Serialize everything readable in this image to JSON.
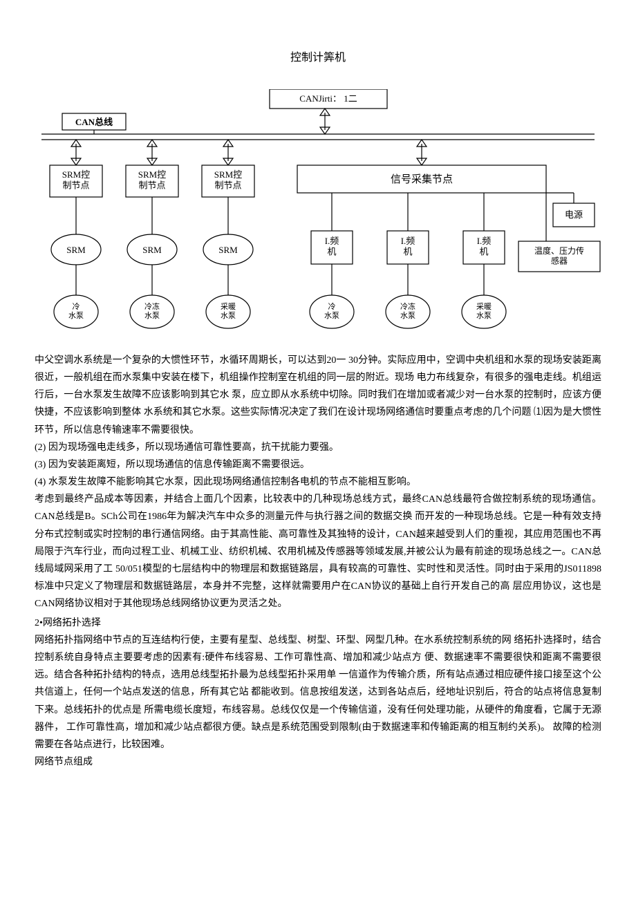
{
  "title": "控制计筭机",
  "diagram": {
    "can_bridge": "CANJirti： 1二",
    "can_bus_label": "CAN总线",
    "srm_ctrl_label": "SRM控\n制节点",
    "signal_node_label": "信号采集节点",
    "srm_label": "SRM",
    "freq_label": "I.频\n机",
    "power_label": "电源",
    "sensor_label": "温度、压力传\n感器",
    "pump_cold": "冷\n水泵",
    "pump_cool": "冷冻\n水泵",
    "pump_warm": "采暖\n水泵",
    "colors": {
      "stroke": "#000000",
      "fill": "#ffffff",
      "text": "#000000"
    },
    "font_size_box": 13,
    "font_size_small": 11,
    "stroke_width": 1.2
  },
  "paragraphs": {
    "p1": "中父空调水系统是一个复杂的大惯性环节，水循环周期长，可以达到20一 30分钟。实际应用中，空调中央机组和水泵的现场安装距离很近，一般机组在而水泵集中安装在楼下，机组操作控制室在机组的同一层的附近。现场 电力布线复杂，有很多的强电走线。机组运行后，一台水泵发生故障不应该影响到其它水 泵，应立即从水系统中切除。同时我们在增加或者减少对一台水泵的控制时，应该方便快捷，不应该影响到整体 水系统和其它水泵。这些实际情况决定了我们在设计现场网络通信时要重点考虑的几个问题 ⑴因为是大惯性环节，所以信息传输速率不需要很快。",
    "l2": "(2) 因为现场强电走线多，所以现场通信可靠性要高，抗干扰能力要强。",
    "l3": "(3) 因为安装距离短，所以现场通信的信息传输距离不需要很远。",
    "l4": "(4) 水泵发生故障不能影响其它水泵，因此现场网络通信控制各电机的节点不能相互影响。",
    "p2": "考虑到最终产品成本等因素，并结合上面几个因素，比较表中的几种现场总线方式，最终CAN总线最符合做控制系统的现场通信。CAN总线是B。SCh公司在1986年为解决汽车中众多的测量元件与执行器之间的数据交换   而开发的一种现场总线。它是一种有效支持分布式控制或实时控制的串行通信网络。由于其高性能、高可靠性及其独特的设计，CAN越来越受到人们的重视，其应用范围也不再局限于汽车行业，而向过程工业、机械工业、纺织机械、农用机械及传感器等领域发展,并被公认为最有前途的现场总线之一。CAN总线局域网采用了工 50/051模型的七层结构中的物理层和数据链路层，具有较高的可靠性、实时性和灵活性。同时由于采用的JS011898 标准中只定义了物理层和数据链路层，本身并不完整，这样就需要用户在CAN协议的基础上自行开发自己的高   层应用协议，这也是CAN网络协议相对于其他现场总线网络协议更为灵活之处。",
    "h2": "2•网络拓扑选择",
    "p3": "网络拓扑指网络中节点的互连结构行使，主要有星型、总线型、树型、环型、网型几种。在水系统控制系统的网 络拓扑选择时，结合控制系统自身特点主要要考虑的因素有:硬件布线容易、工作可靠性高、增加和减少站点方 便、数据速率不需要很快和距离不需要很远。结合各种拓扑结构的特点，选用总线型拓扑最为总线型拓扑采用单 一信道作为传输介质，所有站点通过相应硬件接口接至这个公共信道上，任何一个站点发送的信息，所有其它站 都能收到。信息按组发送，达到各站点后，经地址识别后，符合的站点将信息复制下来。总线拓扑的优点是 所需电缆长度短，布线容易。总线仅仅是一个传输信道，没有任何处理功能，从硬件的角度看，它属于无源器件， 工作可靠性高，增加和减少站点都很方便。缺点是系统范围受到限制(由于数据速率和传输距离的相互制约关系)。 故障的检测需要在各站点进行，比较困难。",
    "p4": "网络节点组成"
  }
}
